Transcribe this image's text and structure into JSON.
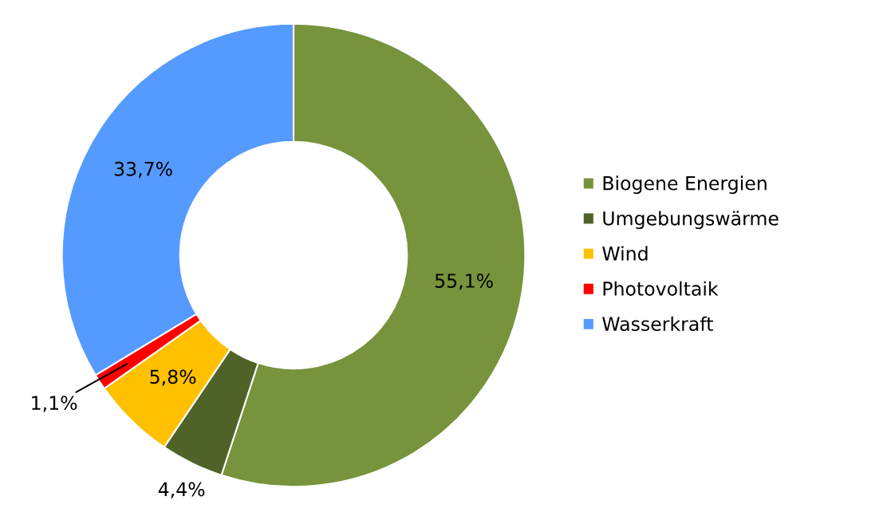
{
  "chart_data": {
    "type": "donut",
    "categories": [
      "Biogene Energien",
      "Umgebungswärme",
      "Wind",
      "Photovoltaik",
      "Wasserkraft"
    ],
    "values": [
      55.1,
      4.4,
      5.8,
      1.1,
      33.7
    ],
    "value_labels": [
      "55,1%",
      "4,4%",
      "5,8%",
      "1,1%",
      "33,7%"
    ],
    "colors": [
      "#77933c",
      "#4f6228",
      "#ffc000",
      "#ff0000",
      "#559bff"
    ],
    "legend": "right"
  }
}
